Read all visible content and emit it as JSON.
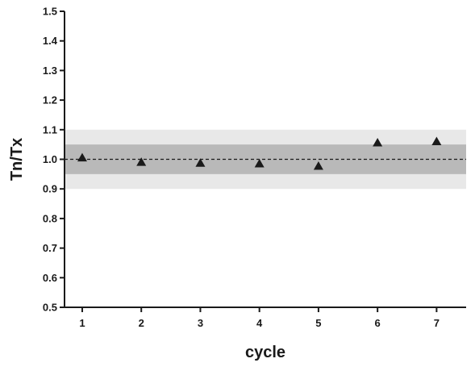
{
  "chart_data": {
    "type": "scatter",
    "xlabel": "cycle",
    "ylabel": "Tn/Tx",
    "xlim": [
      0.7,
      7.5
    ],
    "ylim": [
      0.5,
      1.5
    ],
    "x_ticks": [
      1,
      2,
      3,
      4,
      5,
      6,
      7
    ],
    "y_ticks": [
      "0.5",
      "0.6",
      "0.7",
      "0.8",
      "0.9",
      "1.0",
      "1.1",
      "1.2",
      "1.3",
      "1.4",
      "1.5"
    ],
    "grid": false,
    "reference_line": {
      "y": 1.0,
      "style": "dashed"
    },
    "bands": [
      {
        "from": 0.9,
        "to": 1.1,
        "color": "#e8e8e8"
      },
      {
        "from": 0.95,
        "to": 1.05,
        "color": "#b9b9b9"
      }
    ],
    "marker": "triangle",
    "marker_color": "#1a1a1a",
    "points": [
      {
        "x": 1,
        "y": 1.005
      },
      {
        "x": 2,
        "y": 0.99
      },
      {
        "x": 3,
        "y": 0.987
      },
      {
        "x": 4,
        "y": 0.985
      },
      {
        "x": 5,
        "y": 0.977
      },
      {
        "x": 6,
        "y": 1.056
      },
      {
        "x": 7,
        "y": 1.06
      }
    ]
  }
}
